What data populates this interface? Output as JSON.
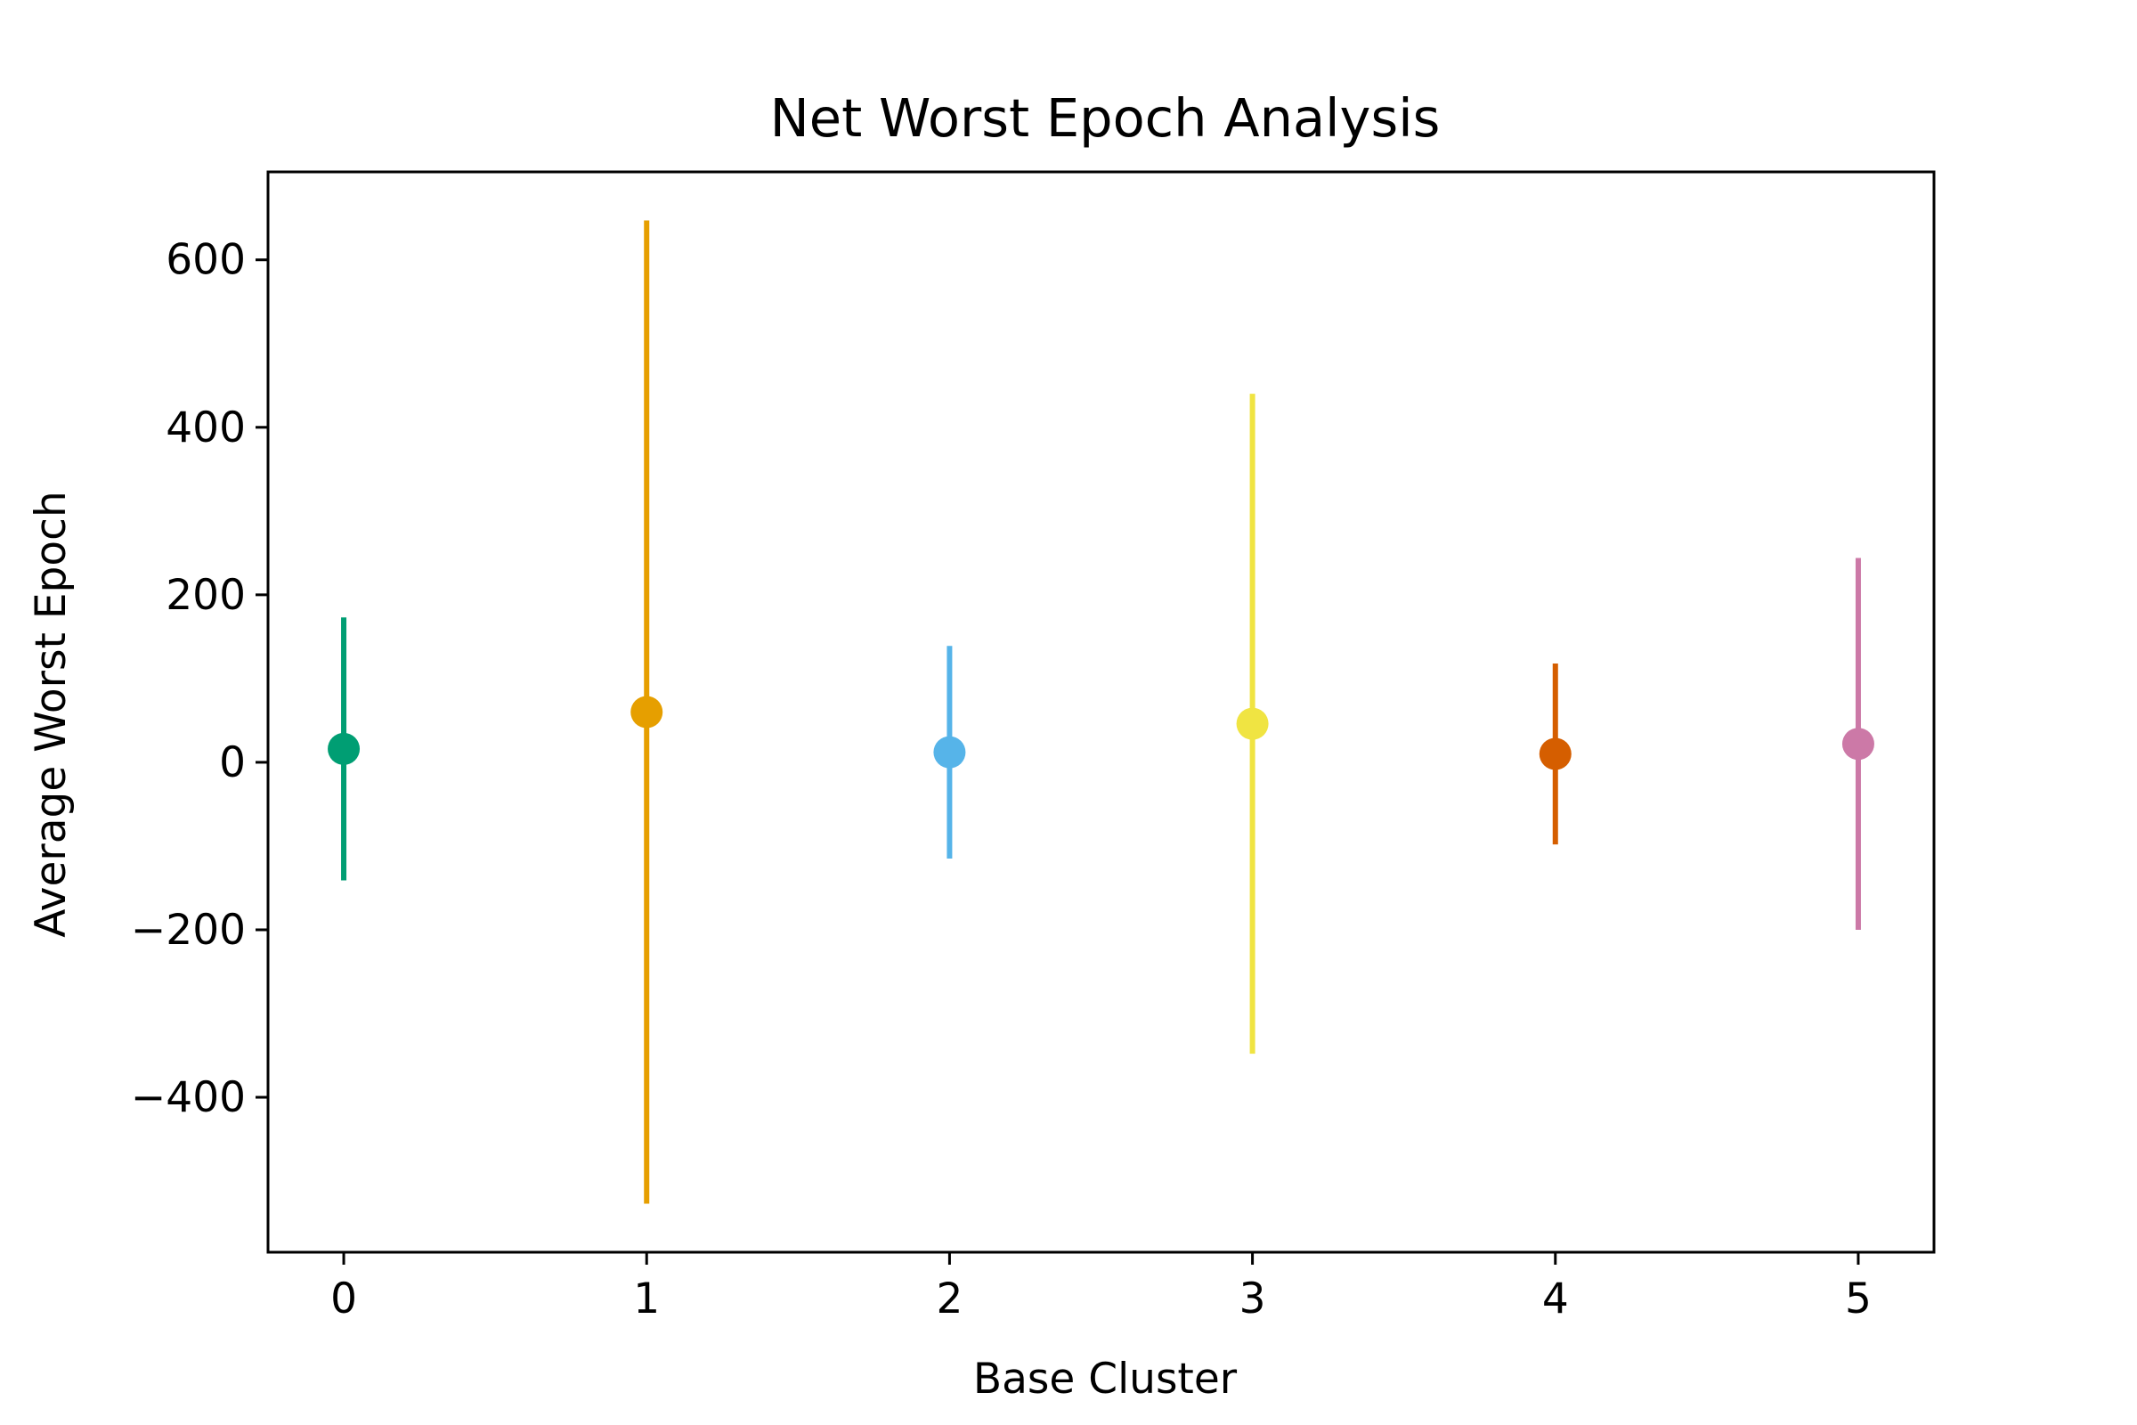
{
  "chart_data": {
    "type": "scatter",
    "title": "Net Worst Epoch Analysis",
    "xlabel": "Base Cluster",
    "ylabel": "Average Worst Epoch",
    "xlim": [
      -0.25,
      5.25
    ],
    "ylim": [
      -585,
      705
    ],
    "xticks": [
      0,
      1,
      2,
      3,
      4,
      5
    ],
    "xtick_labels": [
      "0",
      "1",
      "2",
      "3",
      "4",
      "5"
    ],
    "yticks": [
      -400,
      -200,
      0,
      200,
      400,
      600
    ],
    "ytick_labels": [
      "−400",
      "−200",
      "0",
      "200",
      "400",
      "600"
    ],
    "grid": false,
    "legend": "none",
    "points": [
      {
        "x": 0,
        "y": 16,
        "error": 157,
        "color": "#009E73"
      },
      {
        "x": 1,
        "y": 60,
        "error": 587,
        "color": "#E69F00"
      },
      {
        "x": 2,
        "y": 12,
        "error": 127,
        "color": "#56B4E9"
      },
      {
        "x": 3,
        "y": 46,
        "error": 394,
        "color": "#F0E442"
      },
      {
        "x": 4,
        "y": 10,
        "error": 108,
        "color": "#D55E00"
      },
      {
        "x": 5,
        "y": 22,
        "error": 222,
        "color": "#CC79A7"
      }
    ]
  }
}
